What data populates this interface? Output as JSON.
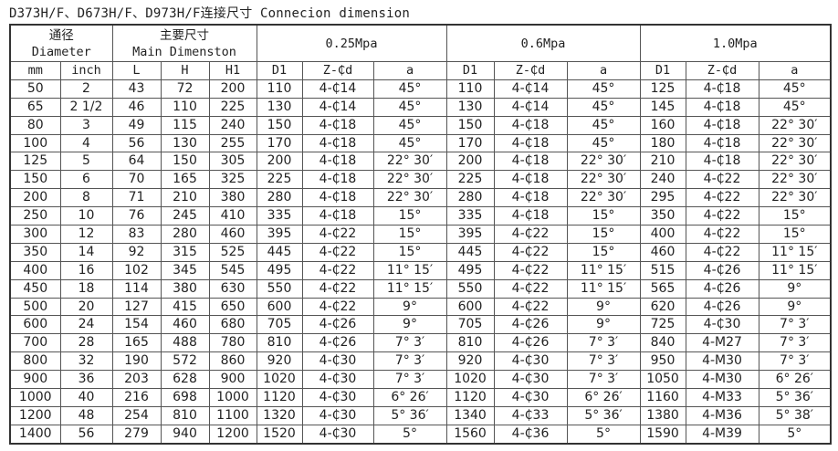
{
  "title": "D373H/F、D673H/F、D973H/F连接尺寸  Connecion dimension",
  "header": {
    "diameter_cn": "通径",
    "diameter_en": "Diameter",
    "main_cn": "主要尺寸",
    "main_en": "Main Dimenston",
    "pressures": [
      "0.25Mpa",
      "0.6Mpa",
      "1.0Mpa"
    ],
    "columns": [
      "mm",
      "inch",
      "L",
      "H",
      "H1",
      "D1",
      "Z-₵d",
      "a",
      "D1",
      "Z-₵d",
      "a",
      "D1",
      "Z-₵d",
      "a"
    ]
  },
  "rows": [
    [
      "50",
      "2",
      "43",
      "72",
      "200",
      "110",
      "4-₵14",
      "45°",
      "110",
      "4-₵14",
      "45°",
      "125",
      "4-₵18",
      "45°"
    ],
    [
      "65",
      "2 1/2",
      "46",
      "110",
      "225",
      "130",
      "4-₵14",
      "45°",
      "130",
      "4-₵14",
      "45°",
      "145",
      "4-₵18",
      "45°"
    ],
    [
      "80",
      "3",
      "49",
      "115",
      "240",
      "150",
      "4-₵18",
      "45°",
      "150",
      "4-₵18",
      "45°",
      "160",
      "4-₵18",
      "22° 30′"
    ],
    [
      "100",
      "4",
      "56",
      "130",
      "255",
      "170",
      "4-₵18",
      "45°",
      "170",
      "4-₵18",
      "45°",
      "180",
      "4-₵18",
      "22° 30′"
    ],
    [
      "125",
      "5",
      "64",
      "150",
      "305",
      "200",
      "4-₵18",
      "22° 30′",
      "200",
      "4-₵18",
      "22° 30′",
      "210",
      "4-₵18",
      "22° 30′"
    ],
    [
      "150",
      "6",
      "70",
      "165",
      "325",
      "225",
      "4-₵18",
      "22° 30′",
      "225",
      "4-₵18",
      "22° 30′",
      "240",
      "4-₵22",
      "22° 30′"
    ],
    [
      "200",
      "8",
      "71",
      "210",
      "380",
      "280",
      "4-₵18",
      "22° 30′",
      "280",
      "4-₵18",
      "22° 30′",
      "295",
      "4-₵22",
      "22° 30′"
    ],
    [
      "250",
      "10",
      "76",
      "245",
      "410",
      "335",
      "4-₵18",
      "15°",
      "335",
      "4-₵18",
      "15°",
      "350",
      "4-₵22",
      "15°"
    ],
    [
      "300",
      "12",
      "83",
      "280",
      "460",
      "395",
      "4-₵22",
      "15°",
      "395",
      "4-₵22",
      "15°",
      "400",
      "4-₵22",
      "15°"
    ],
    [
      "350",
      "14",
      "92",
      "315",
      "525",
      "445",
      "4-₵22",
      "15°",
      "445",
      "4-₵22",
      "15°",
      "460",
      "4-₵22",
      "11° 15′"
    ],
    [
      "400",
      "16",
      "102",
      "345",
      "545",
      "495",
      "4-₵22",
      "11° 15′",
      "495",
      "4-₵22",
      "11° 15′",
      "515",
      "4-₵26",
      "11° 15′"
    ],
    [
      "450",
      "18",
      "114",
      "380",
      "630",
      "550",
      "4-₵22",
      "11° 15′",
      "550",
      "4-₵22",
      "11° 15′",
      "565",
      "4-₵26",
      "9°"
    ],
    [
      "500",
      "20",
      "127",
      "415",
      "650",
      "600",
      "4-₵22",
      "9°",
      "600",
      "4-₵22",
      "9°",
      "620",
      "4-₵26",
      "9°"
    ],
    [
      "600",
      "24",
      "154",
      "460",
      "680",
      "705",
      "4-₵26",
      "9°",
      "705",
      "4-₵26",
      "9°",
      "725",
      "4-₵30",
      "7° 3′"
    ],
    [
      "700",
      "28",
      "165",
      "488",
      "780",
      "810",
      "4-₵26",
      "7° 3′",
      "810",
      "4-₵26",
      "7° 3′",
      "840",
      "4-M27",
      "7° 3′"
    ],
    [
      "800",
      "32",
      "190",
      "572",
      "860",
      "920",
      "4-₵30",
      "7° 3′",
      "920",
      "4-₵30",
      "7° 3′",
      "950",
      "4-M30",
      "7° 3′"
    ],
    [
      "900",
      "36",
      "203",
      "628",
      "900",
      "1020",
      "4-₵30",
      "7° 3′",
      "1020",
      "4-₵30",
      "7° 3′",
      "1050",
      "4-M30",
      "6° 26′"
    ],
    [
      "1000",
      "40",
      "216",
      "698",
      "1000",
      "1120",
      "4-₵30",
      "6° 26′",
      "1120",
      "4-₵30",
      "6° 26′",
      "1160",
      "4-M33",
      "5° 36′"
    ],
    [
      "1200",
      "48",
      "254",
      "810",
      "1100",
      "1320",
      "4-₵30",
      "5° 36′",
      "1340",
      "4-₵33",
      "5° 36′",
      "1380",
      "4-M36",
      "5° 38′"
    ],
    [
      "1400",
      "56",
      "279",
      "940",
      "1200",
      "1520",
      "4-₵30",
      "5°",
      "1560",
      "4-₵36",
      "5°",
      "1590",
      "4-M39",
      "5°"
    ]
  ]
}
